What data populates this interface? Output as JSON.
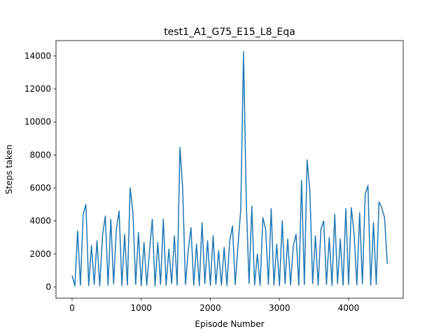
{
  "chart_data": {
    "type": "line",
    "title": "test1_A1_G75_E15_L8_Eqa",
    "x_label": "Episode Number",
    "y_label": "Steps taken",
    "x": [
      0,
      40,
      80,
      120,
      160,
      200,
      240,
      280,
      320,
      360,
      400,
      440,
      480,
      520,
      560,
      600,
      640,
      680,
      720,
      760,
      800,
      840,
      880,
      920,
      960,
      1000,
      1040,
      1080,
      1120,
      1160,
      1200,
      1240,
      1280,
      1320,
      1360,
      1400,
      1440,
      1480,
      1520,
      1560,
      1600,
      1640,
      1680,
      1720,
      1760,
      1800,
      1840,
      1880,
      1920,
      1960,
      2000,
      2040,
      2080,
      2120,
      2160,
      2200,
      2240,
      2280,
      2320,
      2360,
      2400,
      2440,
      2480,
      2520,
      2560,
      2600,
      2640,
      2680,
      2720,
      2760,
      2800,
      2840,
      2880,
      2920,
      2960,
      3000,
      3040,
      3080,
      3120,
      3160,
      3200,
      3240,
      3280,
      3320,
      3360,
      3400,
      3440,
      3480,
      3520,
      3560,
      3600,
      3640,
      3680,
      3720,
      3760,
      3800,
      3840,
      3880,
      3920,
      3960,
      4000,
      4040,
      4080,
      4120,
      4160,
      4200,
      4240,
      4280,
      4320,
      4360,
      4400,
      4440,
      4480,
      4520,
      4560
    ],
    "series": [
      {
        "color": "#1f77b4",
        "values": [
          700,
          50,
          3400,
          100,
          4400,
          5000,
          80,
          2500,
          150,
          2800,
          60,
          3100,
          4300,
          100,
          4100,
          200,
          3500,
          4600,
          90,
          3200,
          120,
          6000,
          4500,
          150,
          3300,
          80,
          2700,
          100,
          2200,
          4100,
          60,
          2700,
          150,
          4100,
          90,
          2300,
          200,
          3100,
          100,
          8450,
          5950,
          150,
          2200,
          3600,
          100,
          2600,
          80,
          3900,
          200,
          2800,
          90,
          3100,
          150,
          2200,
          100,
          2400,
          80,
          2800,
          3700,
          150,
          2500,
          4700,
          14250,
          5150,
          200,
          4900,
          120,
          2000,
          90,
          4200,
          3500,
          150,
          4750,
          100,
          2600,
          80,
          4000,
          200,
          2900,
          120,
          2500,
          3200,
          100,
          6450,
          150,
          7700,
          5800,
          200,
          3100,
          100,
          3500,
          4000,
          150,
          3000,
          90,
          4400,
          200,
          2900,
          100,
          4750,
          150,
          4800,
          3200,
          120,
          4500,
          200,
          5600,
          6150,
          100,
          3900,
          150,
          5150,
          4800,
          4200,
          1400
        ]
      }
    ],
    "xlim": [
      -233,
      4790
    ],
    "ylim": [
      -680,
      14930
    ],
    "xticks": [
      0,
      1000,
      2000,
      3000,
      4000
    ],
    "yticks": [
      0,
      2000,
      4000,
      6000,
      8000,
      10000,
      12000,
      14000
    ]
  }
}
